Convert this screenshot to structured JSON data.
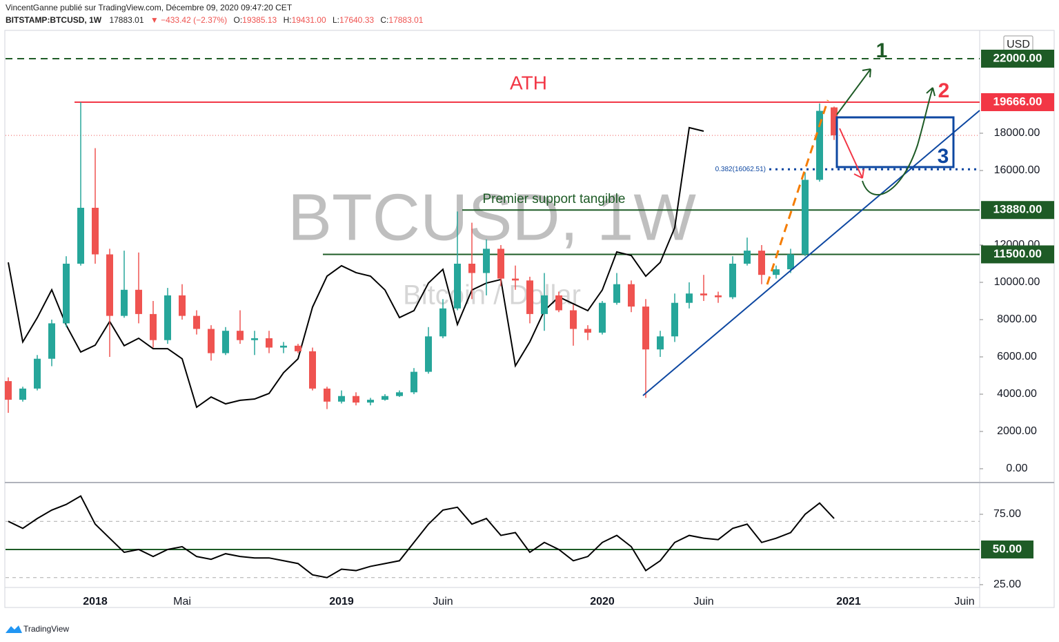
{
  "header": {
    "author": "VincentGanne publié sur TradingView.com, Décembre 09, 2020 09:47:20 CET",
    "symbol": "BITSTAMP:BTCUSD, 1W",
    "last": "17883.01",
    "change": "▼ −433.42 (−2.37%)",
    "ohlc": [
      [
        "O:",
        "19385.13"
      ],
      [
        "H:",
        "19431.00"
      ],
      [
        "L:",
        "17640.33"
      ],
      [
        "C:",
        "17883.01"
      ]
    ]
  },
  "footer": "TradingView",
  "chart_data": {
    "type": "candlestick",
    "currency": "USD",
    "colors": {
      "up": "#26a69a",
      "down": "#ef5350"
    },
    "grid": false,
    "categories": [
      null,
      null,
      null,
      null,
      null,
      null,
      "2018",
      null,
      null,
      null,
      null,
      null,
      "Mai",
      null,
      null,
      null,
      null,
      null,
      null,
      null,
      null,
      null,
      null,
      "2019",
      null,
      null,
      null,
      null,
      null,
      null,
      "Juin",
      null,
      null,
      null,
      null,
      null,
      null,
      null,
      null,
      null,
      null,
      "2020",
      null,
      null,
      null,
      null,
      null,
      null,
      "Juin",
      null,
      null,
      null,
      null,
      null,
      null,
      null,
      null,
      null,
      "2021",
      null,
      null,
      null,
      null,
      null,
      null,
      null,
      "Juin"
    ],
    "bold_categories": [
      "2018",
      "2019",
      "2020",
      "2021"
    ],
    "candles": [
      [
        4700,
        4900,
        3000,
        3700
      ],
      [
        3700,
        4400,
        3600,
        4300
      ],
      [
        4300,
        6100,
        4200,
        5900
      ],
      [
        5900,
        8000,
        5500,
        7800
      ],
      [
        7800,
        11400,
        7600,
        11000
      ],
      [
        11000,
        19666,
        10900,
        14000
      ],
      [
        14000,
        17200,
        11000,
        11500
      ],
      [
        11500,
        11800,
        6000,
        8200
      ],
      [
        8200,
        11700,
        8100,
        9600
      ],
      [
        9600,
        11600,
        7800,
        8300
      ],
      [
        8300,
        9000,
        6500,
        6900
      ],
      [
        6900,
        9700,
        6700,
        9300
      ],
      [
        9300,
        9900,
        8000,
        8200
      ],
      [
        8200,
        8500,
        7200,
        7500
      ],
      [
        7500,
        7700,
        5800,
        6200
      ],
      [
        6200,
        7600,
        6100,
        7400
      ],
      [
        7400,
        8500,
        6700,
        6900
      ],
      [
        6900,
        7400,
        6100,
        7000
      ],
      [
        7000,
        7400,
        6200,
        6500
      ],
      [
        6500,
        6800,
        6200,
        6600
      ],
      [
        6600,
        6700,
        6200,
        6300
      ],
      [
        6300,
        6500,
        4200,
        4300
      ],
      [
        4300,
        4400,
        3200,
        3600
      ],
      [
        3600,
        4200,
        3500,
        3900
      ],
      [
        3900,
        4100,
        3400,
        3550
      ],
      [
        3550,
        3800,
        3400,
        3700
      ],
      [
        3700,
        4000,
        3650,
        3900
      ],
      [
        3900,
        4200,
        3850,
        4100
      ],
      [
        4100,
        5400,
        4000,
        5200
      ],
      [
        5200,
        7600,
        5100,
        7100
      ],
      [
        7100,
        9100,
        7000,
        8600
      ],
      [
        8600,
        13800,
        8500,
        11000
      ],
      [
        11000,
        13200,
        9100,
        10500
      ],
      [
        10500,
        12300,
        9300,
        11800
      ],
      [
        11800,
        12000,
        9800,
        10200
      ],
      [
        10200,
        10900,
        9600,
        10100
      ],
      [
        10100,
        10300,
        7800,
        8300
      ],
      [
        8300,
        10500,
        7400,
        9300
      ],
      [
        9300,
        9500,
        8400,
        8500
      ],
      [
        8500,
        8800,
        6600,
        7500
      ],
      [
        7500,
        7700,
        6900,
        7300
      ],
      [
        7300,
        9000,
        7200,
        8900
      ],
      [
        8900,
        10500,
        8800,
        9900
      ],
      [
        9900,
        10100,
        8400,
        8700
      ],
      [
        8700,
        9100,
        3800,
        6400
      ],
      [
        6400,
        7400,
        6000,
        7100
      ],
      [
        7100,
        9400,
        6800,
        8900
      ],
      [
        8900,
        10000,
        8600,
        9400
      ],
      [
        9400,
        10400,
        9000,
        9300
      ],
      [
        9300,
        9500,
        8900,
        9200
      ],
      [
        9200,
        11400,
        9100,
        11000
      ],
      [
        11000,
        12400,
        10900,
        11700
      ],
      [
        11700,
        12000,
        9900,
        10400
      ],
      [
        10400,
        10900,
        10200,
        10700
      ],
      [
        10700,
        11800,
        10500,
        11500
      ],
      [
        11500,
        15900,
        11400,
        15500
      ],
      [
        15500,
        19600,
        15400,
        19200
      ],
      [
        19385.13,
        19431,
        17640.33,
        17883.01
      ],
      null,
      null,
      null,
      null,
      null,
      null,
      null,
      null,
      null
    ],
    "overlay": {
      "color": "#000000",
      "values": [
        11070,
        6800,
        8100,
        9600,
        7700,
        6260,
        6630,
        7900,
        6600,
        7000,
        6440,
        6440,
        5900,
        3300,
        3850,
        3480,
        3670,
        3740,
        4040,
        5150,
        5900,
        8670,
        10330,
        10890,
        10520,
        10330,
        9590,
        8110,
        8480,
        9960,
        10700,
        7740,
        9590,
        9960,
        10150,
        5520,
        6810,
        8480,
        9220,
        8850,
        8480,
        9590,
        11630,
        11440,
        10330,
        11070,
        12930,
        18300,
        18110,
        null,
        null,
        null,
        null,
        null,
        null,
        null,
        null,
        null,
        null,
        null,
        null,
        null,
        null,
        null,
        null,
        null,
        null
      ]
    },
    "ylim": [
      -667,
      23481
    ],
    "yticks": [
      {
        "value": 0,
        "label": "0.00"
      },
      {
        "value": 2000,
        "label": "2000.00"
      },
      {
        "value": 4000,
        "label": "4000.00"
      },
      {
        "value": 6000,
        "label": "6000.00"
      },
      {
        "value": 8000,
        "label": "8000.00"
      },
      {
        "value": 10000,
        "label": "10000.00"
      },
      {
        "value": 12000,
        "label": "12000.00"
      },
      {
        "value": 16000,
        "label": "16000.00"
      },
      {
        "value": 18000,
        "label": "18000.00"
      }
    ],
    "levels": [
      {
        "value": 22000,
        "label": "22000.00",
        "color": "#1e5b26",
        "style": "dashed"
      },
      {
        "value": 19666,
        "label": "19666.00",
        "color": "#f23645",
        "style": "solid"
      },
      {
        "value": 13880,
        "label": "13880.00",
        "color": "#1e5b26",
        "style": "solid"
      },
      {
        "value": 11500,
        "label": "11500.00",
        "color": "#1e5b26",
        "style": "solid"
      }
    ],
    "fib": {
      "value": 16062.51,
      "label": "0.382(16062.51)",
      "color": "#0d47a1"
    },
    "watermark": [
      "BTCUSD, 1W",
      "Bitcoin / Dollar"
    ],
    "annotations": [
      "ATH",
      "Premier support tangible",
      "1",
      "2",
      "3"
    ],
    "rsi": {
      "values": [
        70,
        65,
        72,
        78,
        82,
        88,
        68,
        58,
        48,
        50,
        45,
        50,
        52,
        45,
        43,
        47,
        45,
        44,
        44,
        42,
        40,
        32,
        30,
        36,
        35,
        38,
        40,
        42,
        55,
        68,
        78,
        80,
        68,
        72,
        60,
        62,
        48,
        55,
        50,
        42,
        45,
        55,
        60,
        52,
        35,
        42,
        55,
        60,
        58,
        57,
        65,
        68,
        55,
        58,
        62,
        75,
        83,
        72,
        null,
        null,
        null,
        null,
        null,
        null,
        null,
        null,
        null
      ],
      "ylim": [
        23.5,
        95.6
      ],
      "yticks": [
        {
          "value": 25,
          "label": "25.00"
        },
        {
          "value": 75,
          "label": "75.00"
        }
      ],
      "bands": [
        30,
        70
      ],
      "level": {
        "value": 50,
        "label": "50.00",
        "color": "#1e5b26"
      }
    }
  }
}
